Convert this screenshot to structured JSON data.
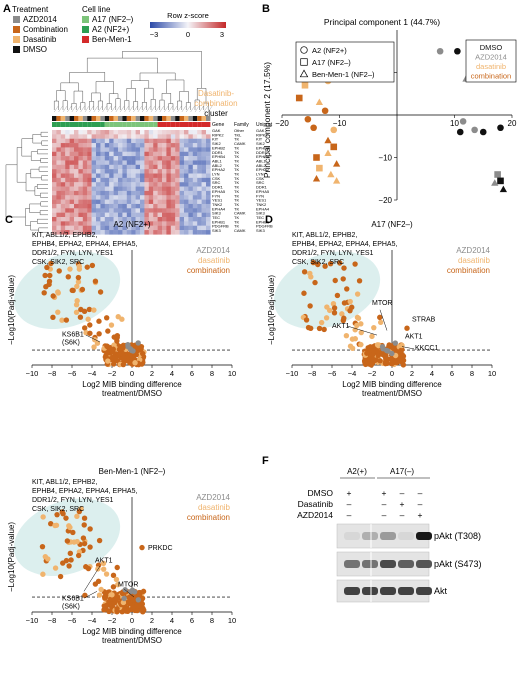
{
  "panels": {
    "A": {
      "letter": "A",
      "treatment_title": "Treatment",
      "treatments": [
        {
          "label": "AZD2014",
          "color": "#8c8c8c"
        },
        {
          "label": "Combination",
          "color": "#c8661a"
        },
        {
          "label": "Dasatinib",
          "color": "#f0b46e"
        },
        {
          "label": "DMSO",
          "color": "#111111"
        }
      ],
      "cellline_title": "Cell line",
      "celllines": [
        {
          "label": "A17 (NF2–)",
          "color": "#7cc47a"
        },
        {
          "label": "A2 (NF2+)",
          "color": "#2e9e52"
        },
        {
          "label": "Ben-Men-1",
          "color": "#d42a2a"
        }
      ],
      "zscore_title": "Row z-score",
      "zscore_ticks": [
        "−3",
        "0",
        "3"
      ],
      "cluster_label": [
        "Dasatinib-",
        "combination",
        "cluster"
      ],
      "table_headers": [
        "Gene",
        "Family",
        "Uniprot"
      ],
      "table_rows": [
        [
          "GAK",
          "Other",
          "GAK"
        ],
        [
          "RIPK2",
          "TKL",
          "RIPK2"
        ],
        [
          "KIT",
          "TK",
          "KIT"
        ],
        [
          "SIK2",
          "CAMK",
          "SIK2"
        ],
        [
          "EPHB2",
          "TK",
          "EPHB2"
        ],
        [
          "DDR1",
          "TK",
          "DDR1"
        ],
        [
          "EPHB4",
          "TK",
          "EPHB4"
        ],
        [
          "ABL1",
          "TK",
          "ABL1"
        ],
        [
          "ABL2",
          "TK",
          "ABL2"
        ],
        [
          "EPHA2",
          "TK",
          "EPHA2"
        ],
        [
          "LYN",
          "TK",
          "LYN"
        ],
        [
          "CSK",
          "TK",
          "CSK"
        ],
        [
          "SRC",
          "TK",
          "SRC"
        ],
        [
          "DDR1",
          "TK",
          "DDR1"
        ],
        [
          "EPHA5",
          "TK",
          "EPHA5"
        ],
        [
          "FYN",
          "TK",
          "FYN"
        ],
        [
          "YES1",
          "TK",
          "YES1"
        ],
        [
          "TNK2",
          "TK",
          "TNK2"
        ],
        [
          "EPHA4",
          "TK",
          "EPHA4"
        ],
        [
          "SIK3",
          "CAMK",
          "SIK3"
        ],
        [
          "TEC",
          "TK",
          "TEC"
        ],
        [
          "EPHB1",
          "TK",
          "EPHB1"
        ],
        [
          "PDGFRB",
          "TK",
          "PDGFRB"
        ],
        [
          "SIK3",
          "CAMK",
          "SIK3"
        ]
      ]
    },
    "B": {
      "letter": "B",
      "top_label": "Principal component 1 (44.7%)",
      "y_label": "Principal component 2 (17.5%)",
      "legend_shapes": [
        {
          "label": "A2 (NF2+)",
          "shape": "circle"
        },
        {
          "label": "A17 (NF2–)",
          "shape": "square"
        },
        {
          "label": "Ben-Men-1 (NF2–)",
          "shape": "triangle"
        }
      ],
      "legend_treatments": [
        {
          "label": "DMSO",
          "color": "#111111"
        },
        {
          "label": "AZD2014",
          "color": "#8c8c8c"
        },
        {
          "label": "dasatinib",
          "color": "#f0b46e"
        },
        {
          "label": "combination",
          "color": "#c8661a"
        }
      ],
      "x_ticks": [
        -20,
        -10,
        10,
        20
      ],
      "y_ticks": [
        10,
        -10,
        -20
      ],
      "points": [
        {
          "x": -16.5,
          "y": 14,
          "s": "circle",
          "c": "#8c8c8c"
        },
        {
          "x": -16,
          "y": 11,
          "s": "circle",
          "c": "#f0b46e"
        },
        {
          "x": -12.5,
          "y": 14,
          "s": "circle",
          "c": "#c8661a"
        },
        {
          "x": -13,
          "y": 12,
          "s": "square",
          "c": "#c8661a"
        },
        {
          "x": -16,
          "y": 7,
          "s": "square",
          "c": "#f0b46e"
        },
        {
          "x": -12,
          "y": 8,
          "s": "circle",
          "c": "#f0b46e"
        },
        {
          "x": -17,
          "y": 4,
          "s": "square",
          "c": "#c8661a"
        },
        {
          "x": -13.5,
          "y": 3,
          "s": "triangle",
          "c": "#f0b46e"
        },
        {
          "x": -12.5,
          "y": 1,
          "s": "circle",
          "c": "#c8661a"
        },
        {
          "x": -15.5,
          "y": -1,
          "s": "circle",
          "c": "#c8661a"
        },
        {
          "x": -14.5,
          "y": -3,
          "s": "circle",
          "c": "#c8661a"
        },
        {
          "x": -11,
          "y": -3.5,
          "s": "circle",
          "c": "#f0b46e"
        },
        {
          "x": -12,
          "y": -6,
          "s": "triangle",
          "c": "#c8661a"
        },
        {
          "x": -11,
          "y": -7.5,
          "s": "square",
          "c": "#c8661a"
        },
        {
          "x": -12,
          "y": -9,
          "s": "triangle",
          "c": "#f0b46e"
        },
        {
          "x": -14,
          "y": -10,
          "s": "square",
          "c": "#c8661a"
        },
        {
          "x": -10.5,
          "y": -11.5,
          "s": "triangle",
          "c": "#c8661a"
        },
        {
          "x": -13.5,
          "y": -12.5,
          "s": "square",
          "c": "#f0b46e"
        },
        {
          "x": -11.5,
          "y": -14,
          "s": "triangle",
          "c": "#f0b46e"
        },
        {
          "x": -14,
          "y": -15,
          "s": "triangle",
          "c": "#c8661a"
        },
        {
          "x": -10.5,
          "y": -15.5,
          "s": "triangle",
          "c": "#f0b46e"
        },
        {
          "x": 7.5,
          "y": 15,
          "s": "circle",
          "c": "#8c8c8c"
        },
        {
          "x": 10.5,
          "y": 15,
          "s": "circle",
          "c": "#111111"
        },
        {
          "x": 15,
          "y": 14.5,
          "s": "circle",
          "c": "#8c8c8c"
        },
        {
          "x": 15.5,
          "y": 12.5,
          "s": "square",
          "c": "#8c8c8c"
        },
        {
          "x": 17,
          "y": 12,
          "s": "square",
          "c": "#111111"
        },
        {
          "x": 16.5,
          "y": 9.5,
          "s": "square",
          "c": "#111111"
        },
        {
          "x": 12.5,
          "y": 9,
          "s": "triangle",
          "c": "#111111"
        },
        {
          "x": 12,
          "y": 8.5,
          "s": "triangle",
          "c": "#8c8c8c"
        },
        {
          "x": 11.5,
          "y": -1.5,
          "s": "circle",
          "c": "#8c8c8c"
        },
        {
          "x": 11,
          "y": -4,
          "s": "circle",
          "c": "#111111"
        },
        {
          "x": 13.5,
          "y": -3.5,
          "s": "circle",
          "c": "#8c8c8c"
        },
        {
          "x": 15,
          "y": -4,
          "s": "circle",
          "c": "#111111"
        },
        {
          "x": 18,
          "y": -3,
          "s": "circle",
          "c": "#111111"
        },
        {
          "x": 17.5,
          "y": -14,
          "s": "square",
          "c": "#8c8c8c"
        },
        {
          "x": 18,
          "y": -15.5,
          "s": "square",
          "c": "#111111"
        },
        {
          "x": 17,
          "y": -16,
          "s": "triangle",
          "c": "#8c8c8c"
        },
        {
          "x": 18.5,
          "y": -17.5,
          "s": "triangle",
          "c": "#111111"
        }
      ]
    },
    "C": {
      "letter": "C",
      "title": "A2 (NF2+)"
    },
    "D": {
      "letter": "D",
      "title": "A17 (NF2–)"
    },
    "E": {
      "letter": "",
      "title": "Ben-Men-1 (NF2–)"
    },
    "volcano_common": {
      "kinase_list": [
        "KIT, ABL1/2, EPHB2,",
        "EPHB4, EPHA2, EPHA4, EPHA5,",
        "DDR1/2, FYN, LYN, YES1",
        "CSK, SIK2, SRC"
      ],
      "legend": [
        {
          "label": "AZD2014",
          "color": "#8c8c8c"
        },
        {
          "label": "dasatinib",
          "color": "#f0b46e"
        },
        {
          "label": "combination",
          "color": "#c8661a"
        }
      ],
      "y_label": "−Log10(Padj-value)",
      "x_label_1": "Log2 MIB binding difference",
      "x_label_2": "treatment/DMSO",
      "x_ticks": [
        "−10",
        "−8",
        "−6",
        "−4",
        "−2",
        "0",
        "2",
        "4",
        "6",
        "8",
        "10"
      ]
    },
    "C_labels": [
      "KS6B1",
      "(S6K)"
    ],
    "D_labels": [
      "MTOR",
      "STRAB",
      "AKT1",
      "AKT1",
      "KKCC1"
    ],
    "E_labels": [
      "AKT1",
      "PRKDC",
      "MTOR",
      "KS6B1",
      "(S6K)"
    ],
    "F": {
      "letter": "F",
      "group_labels": [
        "A2(+)",
        "A17(–)"
      ],
      "row_labels": [
        "DMSO",
        "Dasatinib",
        "AZD2014"
      ],
      "signs": [
        [
          "+",
          "",
          "+",
          "–",
          "–"
        ],
        [
          "–",
          "",
          "+",
          "–",
          "–"
        ],
        [
          "–",
          "",
          "–",
          "+",
          "+"
        ]
      ],
      "sign_rows": [
        [
          "+",
          "+",
          "–",
          "–"
        ],
        [
          "–",
          "–",
          "+",
          "–"
        ],
        [
          "–",
          "–",
          "–",
          "+"
        ]
      ],
      "band_labels": [
        "pAkt (T308)",
        "pAkt (S473)",
        "Akt"
      ]
    }
  }
}
